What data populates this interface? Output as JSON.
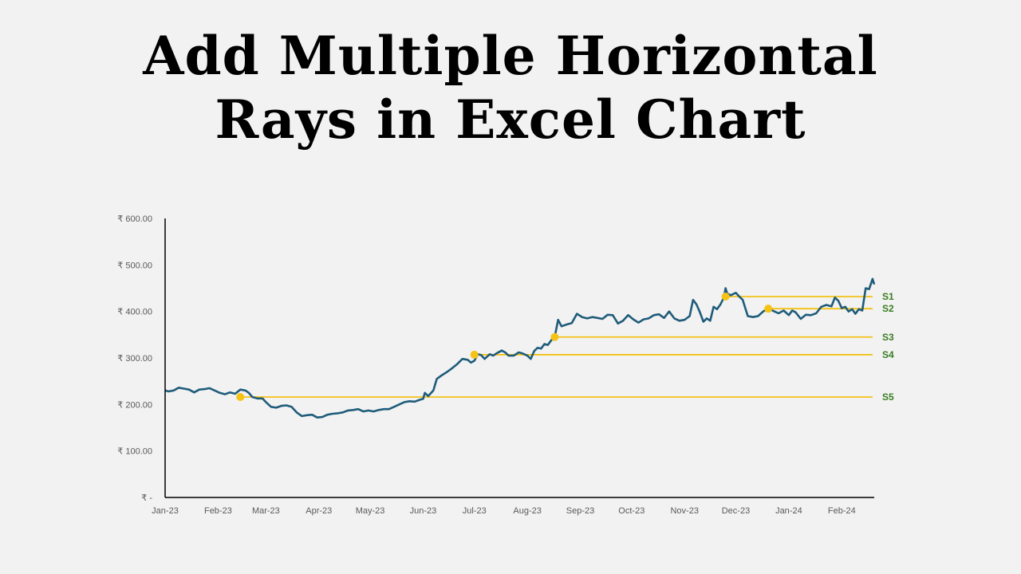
{
  "title": {
    "line1": "Add Multiple Horizontal",
    "line2": "Rays in Excel Chart"
  },
  "chart_data": {
    "type": "line",
    "title": "Add Multiple Horizontal Rays in Excel Chart",
    "xlabel": "",
    "ylabel": "",
    "x_start": "2023-01-01",
    "x_end": "2024-02-20",
    "ylim": [
      0,
      600
    ],
    "y_ticks": [
      0,
      100,
      200,
      300,
      400,
      500,
      600
    ],
    "y_tick_labels": [
      "₹ -",
      "₹ 100.00",
      "₹ 200.00",
      "₹ 300.00",
      "₹ 400.00",
      "₹ 500.00",
      "₹ 600.00"
    ],
    "x_tick_labels": [
      "Jan-23",
      "Feb-23",
      "Mar-23",
      "Apr-23",
      "May-23",
      "Jun-23",
      "Jul-23",
      "Aug-23",
      "Sep-23",
      "Oct-23",
      "Nov-23",
      "Dec-23",
      "Jan-24",
      "Feb-24"
    ],
    "x_tick_dates": [
      "2023-01-01",
      "2023-02-01",
      "2023-03-01",
      "2023-04-01",
      "2023-05-01",
      "2023-06-01",
      "2023-07-01",
      "2023-08-01",
      "2023-09-01",
      "2023-10-01",
      "2023-11-01",
      "2023-12-01",
      "2024-01-01",
      "2024-02-01"
    ],
    "grid": false,
    "legend": "none",
    "series": [
      {
        "color": "#1f5c7a",
        "points": [
          [
            "2023-01-01",
            230
          ],
          [
            "2023-01-03",
            228
          ],
          [
            "2023-01-06",
            230
          ],
          [
            "2023-01-09",
            236
          ],
          [
            "2023-01-12",
            234
          ],
          [
            "2023-01-15",
            232
          ],
          [
            "2023-01-18",
            226
          ],
          [
            "2023-01-21",
            232
          ],
          [
            "2023-01-24",
            233
          ],
          [
            "2023-01-27",
            235
          ],
          [
            "2023-01-30",
            230
          ],
          [
            "2023-02-02",
            225
          ],
          [
            "2023-02-05",
            222
          ],
          [
            "2023-02-08",
            226
          ],
          [
            "2023-02-11",
            223
          ],
          [
            "2023-02-14",
            232
          ],
          [
            "2023-02-17",
            230
          ],
          [
            "2023-02-19",
            225
          ],
          [
            "2023-02-21",
            216
          ],
          [
            "2023-02-24",
            213
          ],
          [
            "2023-02-27",
            213
          ],
          [
            "2023-03-01",
            205
          ],
          [
            "2023-03-04",
            195
          ],
          [
            "2023-03-07",
            193
          ],
          [
            "2023-03-10",
            197
          ],
          [
            "2023-03-13",
            198
          ],
          [
            "2023-03-16",
            195
          ],
          [
            "2023-03-19",
            183
          ],
          [
            "2023-03-22",
            175
          ],
          [
            "2023-03-25",
            177
          ],
          [
            "2023-03-28",
            178
          ],
          [
            "2023-03-31",
            172
          ],
          [
            "2023-04-03",
            173
          ],
          [
            "2023-04-06",
            178
          ],
          [
            "2023-04-09",
            180
          ],
          [
            "2023-04-12",
            181
          ],
          [
            "2023-04-15",
            183
          ],
          [
            "2023-04-18",
            187
          ],
          [
            "2023-04-21",
            188
          ],
          [
            "2023-04-24",
            190
          ],
          [
            "2023-04-27",
            185
          ],
          [
            "2023-04-30",
            187
          ],
          [
            "2023-05-03",
            185
          ],
          [
            "2023-05-06",
            188
          ],
          [
            "2023-05-09",
            190
          ],
          [
            "2023-05-12",
            190
          ],
          [
            "2023-05-15",
            195
          ],
          [
            "2023-05-18",
            200
          ],
          [
            "2023-05-21",
            205
          ],
          [
            "2023-05-24",
            207
          ],
          [
            "2023-05-27",
            206
          ],
          [
            "2023-05-30",
            210
          ],
          [
            "2023-06-01",
            212
          ],
          [
            "2023-06-02",
            225
          ],
          [
            "2023-06-04",
            218
          ],
          [
            "2023-06-07",
            230
          ],
          [
            "2023-06-09",
            255
          ],
          [
            "2023-06-12",
            263
          ],
          [
            "2023-06-15",
            270
          ],
          [
            "2023-06-18",
            278
          ],
          [
            "2023-06-21",
            287
          ],
          [
            "2023-06-24",
            298
          ],
          [
            "2023-06-27",
            296
          ],
          [
            "2023-06-29",
            290
          ],
          [
            "2023-07-01",
            294
          ],
          [
            "2023-07-03",
            308
          ],
          [
            "2023-07-05",
            306
          ],
          [
            "2023-07-07",
            298
          ],
          [
            "2023-07-10",
            308
          ],
          [
            "2023-07-12",
            305
          ],
          [
            "2023-07-14",
            310
          ],
          [
            "2023-07-17",
            316
          ],
          [
            "2023-07-19",
            312
          ],
          [
            "2023-07-21",
            305
          ],
          [
            "2023-07-24",
            305
          ],
          [
            "2023-07-27",
            312
          ],
          [
            "2023-07-29",
            310
          ],
          [
            "2023-08-01",
            305
          ],
          [
            "2023-08-03",
            298
          ],
          [
            "2023-08-05",
            315
          ],
          [
            "2023-08-07",
            322
          ],
          [
            "2023-08-09",
            320
          ],
          [
            "2023-08-11",
            330
          ],
          [
            "2023-08-13",
            328
          ],
          [
            "2023-08-15",
            338
          ],
          [
            "2023-08-17",
            345
          ],
          [
            "2023-08-19",
            382
          ],
          [
            "2023-08-21",
            368
          ],
          [
            "2023-08-24",
            372
          ],
          [
            "2023-08-27",
            375
          ],
          [
            "2023-08-30",
            395
          ],
          [
            "2023-09-02",
            388
          ],
          [
            "2023-09-05",
            385
          ],
          [
            "2023-09-08",
            388
          ],
          [
            "2023-09-11",
            386
          ],
          [
            "2023-09-14",
            384
          ],
          [
            "2023-09-17",
            393
          ],
          [
            "2023-09-20",
            392
          ],
          [
            "2023-09-23",
            374
          ],
          [
            "2023-09-26",
            380
          ],
          [
            "2023-09-29",
            392
          ],
          [
            "2023-10-02",
            383
          ],
          [
            "2023-10-05",
            376
          ],
          [
            "2023-10-08",
            383
          ],
          [
            "2023-10-11",
            385
          ],
          [
            "2023-10-14",
            392
          ],
          [
            "2023-10-17",
            394
          ],
          [
            "2023-10-20",
            386
          ],
          [
            "2023-10-23",
            400
          ],
          [
            "2023-10-26",
            385
          ],
          [
            "2023-10-29",
            380
          ],
          [
            "2023-11-01",
            382
          ],
          [
            "2023-11-04",
            390
          ],
          [
            "2023-11-06",
            425
          ],
          [
            "2023-11-08",
            415
          ],
          [
            "2023-11-10",
            398
          ],
          [
            "2023-11-12",
            378
          ],
          [
            "2023-11-14",
            385
          ],
          [
            "2023-11-16",
            380
          ],
          [
            "2023-11-18",
            410
          ],
          [
            "2023-11-20",
            405
          ],
          [
            "2023-11-22",
            415
          ],
          [
            "2023-11-24",
            430
          ],
          [
            "2023-11-25",
            450
          ],
          [
            "2023-11-26",
            438
          ],
          [
            "2023-11-28",
            435
          ],
          [
            "2023-12-01",
            440
          ],
          [
            "2023-12-03",
            432
          ],
          [
            "2023-12-05",
            425
          ],
          [
            "2023-12-08",
            390
          ],
          [
            "2023-12-11",
            388
          ],
          [
            "2023-12-14",
            390
          ],
          [
            "2023-12-17",
            400
          ],
          [
            "2023-12-20",
            407
          ],
          [
            "2023-12-23",
            401
          ],
          [
            "2023-12-26",
            396
          ],
          [
            "2023-12-29",
            402
          ],
          [
            "2024-01-01",
            392
          ],
          [
            "2024-01-03",
            402
          ],
          [
            "2024-01-05",
            398
          ],
          [
            "2024-01-08",
            384
          ],
          [
            "2024-01-11",
            393
          ],
          [
            "2024-01-14",
            392
          ],
          [
            "2024-01-17",
            396
          ],
          [
            "2024-01-20",
            410
          ],
          [
            "2024-01-23",
            414
          ],
          [
            "2024-01-26",
            411
          ],
          [
            "2024-01-28",
            430
          ],
          [
            "2024-01-30",
            423
          ],
          [
            "2024-02-01",
            407
          ],
          [
            "2024-02-03",
            410
          ],
          [
            "2024-02-05",
            400
          ],
          [
            "2024-02-07",
            405
          ],
          [
            "2024-02-09",
            395
          ],
          [
            "2024-02-11",
            405
          ],
          [
            "2024-02-13",
            402
          ],
          [
            "2024-02-15",
            450
          ],
          [
            "2024-02-17",
            448
          ],
          [
            "2024-02-19",
            470
          ],
          [
            "2024-02-20",
            458
          ]
        ]
      }
    ],
    "rays": [
      {
        "label": "S1",
        "date": "2023-11-25",
        "value": 432
      },
      {
        "label": "S2",
        "date": "2023-12-20",
        "value": 406
      },
      {
        "label": "S3",
        "date": "2023-08-17",
        "value": 345
      },
      {
        "label": "S4",
        "date": "2023-07-01",
        "value": 307
      },
      {
        "label": "S5",
        "date": "2023-02-14",
        "value": 216
      }
    ],
    "ray_color": "#f5c216",
    "ray_label_color": "#3a7d22"
  }
}
